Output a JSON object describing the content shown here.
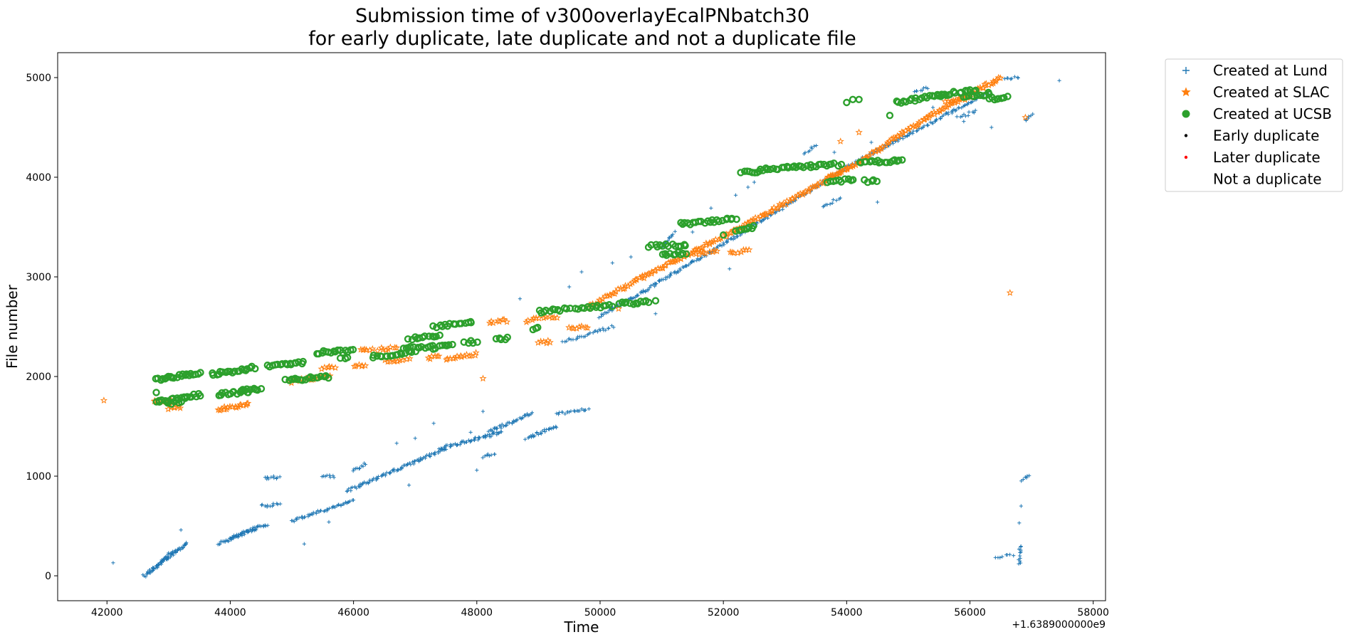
{
  "chart_data": {
    "type": "scatter",
    "title": "Submission time of v300overlayEcalPNbatch30\nfor early duplicate, late duplicate and not a duplicate file",
    "xlabel": "Time",
    "ylabel": "File number",
    "x_offset_label": "+1.6389000000e9",
    "xlim": [
      41200,
      58200
    ],
    "ylim": [
      -250,
      5250
    ],
    "xticks": [
      42000,
      44000,
      46000,
      48000,
      50000,
      52000,
      54000,
      56000,
      58000
    ],
    "yticks": [
      0,
      1000,
      2000,
      3000,
      4000,
      5000
    ],
    "grid": false,
    "legend_position": "outside-top-right",
    "legend": [
      {
        "label": "Created at Lund",
        "marker": "plus",
        "color": "#1f77b4"
      },
      {
        "label": "Created at SLAC",
        "marker": "star",
        "color": "#ff7f0e"
      },
      {
        "label": "Created at UCSB",
        "marker": "circle",
        "color": "#2ca02c"
      },
      {
        "label": "Early duplicate",
        "marker": "dot",
        "color": "#000000"
      },
      {
        "label": "Later duplicate",
        "marker": "dot",
        "color": "#ff0000"
      },
      {
        "label": "Not a duplicate",
        "marker": "none",
        "color": "#ffffff"
      }
    ],
    "series": [
      {
        "name": "Created at Lund",
        "marker": "plus",
        "color": "#1f77b4",
        "segments": [
          {
            "x0": 42600,
            "y0": 0,
            "x1": 43300,
            "y1": 330,
            "n": 60
          },
          {
            "x0": 42700,
            "y0": 50,
            "x1": 43100,
            "y1": 260,
            "n": 25
          },
          {
            "x0": 43800,
            "y0": 320,
            "x1": 44600,
            "y1": 520,
            "n": 50
          },
          {
            "x0": 44000,
            "y0": 380,
            "x1": 44400,
            "y1": 480,
            "n": 20
          },
          {
            "x0": 44500,
            "y0": 700,
            "x1": 44800,
            "y1": 720,
            "n": 12
          },
          {
            "x0": 44550,
            "y0": 980,
            "x1": 44800,
            "y1": 990,
            "n": 10
          },
          {
            "x0": 45000,
            "y0": 550,
            "x1": 46000,
            "y1": 760,
            "n": 50
          },
          {
            "x0": 45500,
            "y0": 1000,
            "x1": 45700,
            "y1": 1000,
            "n": 8
          },
          {
            "x0": 45900,
            "y0": 850,
            "x1": 47500,
            "y1": 1280,
            "n": 90
          },
          {
            "x0": 46000,
            "y0": 1050,
            "x1": 46200,
            "y1": 1130,
            "n": 10
          },
          {
            "x0": 47400,
            "y0": 1280,
            "x1": 48400,
            "y1": 1440,
            "n": 55
          },
          {
            "x0": 48100,
            "y0": 1200,
            "x1": 48300,
            "y1": 1220,
            "n": 8
          },
          {
            "x0": 48200,
            "y0": 1450,
            "x1": 48900,
            "y1": 1630,
            "n": 40
          },
          {
            "x0": 48800,
            "y0": 1380,
            "x1": 49300,
            "y1": 1500,
            "n": 25
          },
          {
            "x0": 49300,
            "y0": 1620,
            "x1": 49800,
            "y1": 1680,
            "n": 20
          },
          {
            "x0": 49400,
            "y0": 2350,
            "x1": 50200,
            "y1": 2500,
            "n": 30
          },
          {
            "x0": 50000,
            "y0": 2600,
            "x1": 52200,
            "y1": 3400,
            "n": 110
          },
          {
            "x0": 51000,
            "y0": 3300,
            "x1": 51200,
            "y1": 3450,
            "n": 12
          },
          {
            "x0": 52200,
            "y0": 3400,
            "x1": 54000,
            "y1": 4100,
            "n": 90
          },
          {
            "x0": 53300,
            "y0": 4230,
            "x1": 53500,
            "y1": 4330,
            "n": 8
          },
          {
            "x0": 53600,
            "y0": 3700,
            "x1": 53900,
            "y1": 3790,
            "n": 10
          },
          {
            "x0": 54000,
            "y0": 4100,
            "x1": 56300,
            "y1": 4850,
            "n": 110
          },
          {
            "x0": 55100,
            "y0": 4850,
            "x1": 55300,
            "y1": 4900,
            "n": 8
          },
          {
            "x0": 55800,
            "y0": 4600,
            "x1": 56100,
            "y1": 4660,
            "n": 10
          },
          {
            "x0": 56400,
            "y0": 190,
            "x1": 56700,
            "y1": 210,
            "n": 8
          },
          {
            "x0": 56800,
            "y0": 120,
            "x1": 56820,
            "y1": 300,
            "n": 12
          },
          {
            "x0": 56850,
            "y0": 960,
            "x1": 56950,
            "y1": 1000,
            "n": 6
          },
          {
            "x0": 56900,
            "y0": 4560,
            "x1": 57000,
            "y1": 4620,
            "n": 6
          },
          {
            "x0": 56550,
            "y0": 4990,
            "x1": 56800,
            "y1": 5000,
            "n": 8
          }
        ],
        "points": [
          [
            42100,
            130
          ],
          [
            43200,
            460
          ],
          [
            44600,
            990
          ],
          [
            45200,
            320
          ],
          [
            45600,
            540
          ],
          [
            46700,
            1330
          ],
          [
            46900,
            910
          ],
          [
            47000,
            1380
          ],
          [
            47300,
            1530
          ],
          [
            47900,
            1440
          ],
          [
            48000,
            1060
          ],
          [
            48100,
            1650
          ],
          [
            48700,
            2780
          ],
          [
            49500,
            2900
          ],
          [
            49700,
            3050
          ],
          [
            50200,
            3140
          ],
          [
            50500,
            3200
          ],
          [
            50900,
            2630
          ],
          [
            51500,
            3450
          ],
          [
            51800,
            3690
          ],
          [
            52100,
            3080
          ],
          [
            52200,
            3820
          ],
          [
            52400,
            3900
          ],
          [
            52500,
            3950
          ],
          [
            53800,
            4250
          ],
          [
            54400,
            4350
          ],
          [
            54500,
            3750
          ],
          [
            55400,
            4700
          ],
          [
            55900,
            4560
          ],
          [
            56350,
            4500
          ],
          [
            56800,
            530
          ],
          [
            56830,
            700
          ],
          [
            57450,
            4970
          ]
        ]
      },
      {
        "name": "Created at SLAC",
        "marker": "star",
        "color": "#ff7f0e",
        "segments": [
          {
            "x0": 42750,
            "y0": 1740,
            "x1": 43100,
            "y1": 1760,
            "n": 10
          },
          {
            "x0": 43000,
            "y0": 1680,
            "x1": 43200,
            "y1": 1690,
            "n": 6
          },
          {
            "x0": 43800,
            "y0": 1670,
            "x1": 44300,
            "y1": 1720,
            "n": 18
          },
          {
            "x0": 45000,
            "y0": 1950,
            "x1": 45600,
            "y1": 2000,
            "n": 18
          },
          {
            "x0": 45500,
            "y0": 2090,
            "x1": 45700,
            "y1": 2100,
            "n": 6
          },
          {
            "x0": 46000,
            "y0": 2100,
            "x1": 46200,
            "y1": 2120,
            "n": 6
          },
          {
            "x0": 46100,
            "y0": 2260,
            "x1": 46300,
            "y1": 2270,
            "n": 6
          },
          {
            "x0": 46400,
            "y0": 2270,
            "x1": 46700,
            "y1": 2290,
            "n": 8
          },
          {
            "x0": 46500,
            "y0": 2150,
            "x1": 46900,
            "y1": 2180,
            "n": 10
          },
          {
            "x0": 47200,
            "y0": 2180,
            "x1": 47400,
            "y1": 2200,
            "n": 6
          },
          {
            "x0": 47500,
            "y0": 2170,
            "x1": 48000,
            "y1": 2230,
            "n": 14
          },
          {
            "x0": 48200,
            "y0": 2540,
            "x1": 48500,
            "y1": 2560,
            "n": 8
          },
          {
            "x0": 48800,
            "y0": 2560,
            "x1": 49300,
            "y1": 2600,
            "n": 12
          },
          {
            "x0": 49000,
            "y0": 2340,
            "x1": 49200,
            "y1": 2350,
            "n": 6
          },
          {
            "x0": 49500,
            "y0": 2480,
            "x1": 49800,
            "y1": 2500,
            "n": 8
          },
          {
            "x0": 49800,
            "y0": 2700,
            "x1": 50700,
            "y1": 3000,
            "n": 30
          },
          {
            "x0": 50700,
            "y0": 3000,
            "x1": 52300,
            "y1": 3500,
            "n": 55
          },
          {
            "x0": 51500,
            "y0": 3230,
            "x1": 51900,
            "y1": 3260,
            "n": 10
          },
          {
            "x0": 52100,
            "y0": 3250,
            "x1": 52400,
            "y1": 3260,
            "n": 8
          },
          {
            "x0": 52300,
            "y0": 3500,
            "x1": 54200,
            "y1": 4150,
            "n": 65
          },
          {
            "x0": 53700,
            "y0": 3990,
            "x1": 54000,
            "y1": 4100,
            "n": 8
          },
          {
            "x0": 54200,
            "y0": 4150,
            "x1": 55300,
            "y1": 4600,
            "n": 40
          },
          {
            "x0": 55300,
            "y0": 4600,
            "x1": 56500,
            "y1": 5000,
            "n": 45
          },
          {
            "x0": 55600,
            "y0": 4750,
            "x1": 56000,
            "y1": 4800,
            "n": 10
          }
        ],
        "points": [
          [
            41950,
            1760
          ],
          [
            48100,
            1980
          ],
          [
            50300,
            2680
          ],
          [
            51200,
            3150
          ],
          [
            53900,
            4360
          ],
          [
            54200,
            4450
          ],
          [
            56650,
            2840
          ],
          [
            56900,
            4600
          ]
        ]
      },
      {
        "name": "Created at UCSB",
        "marker": "circle",
        "color": "#2ca02c",
        "segments": [
          {
            "x0": 42800,
            "y0": 1970,
            "x1": 43500,
            "y1": 2040,
            "n": 22
          },
          {
            "x0": 42800,
            "y0": 1740,
            "x1": 43500,
            "y1": 1820,
            "n": 22
          },
          {
            "x0": 43000,
            "y0": 1730,
            "x1": 43200,
            "y1": 1740,
            "n": 5
          },
          {
            "x0": 43700,
            "y0": 2020,
            "x1": 44400,
            "y1": 2090,
            "n": 20
          },
          {
            "x0": 43800,
            "y0": 1820,
            "x1": 44300,
            "y1": 1850,
            "n": 14
          },
          {
            "x0": 44200,
            "y0": 1860,
            "x1": 44500,
            "y1": 1870,
            "n": 8
          },
          {
            "x0": 44600,
            "y0": 2100,
            "x1": 45200,
            "y1": 2140,
            "n": 16
          },
          {
            "x0": 44900,
            "y0": 1960,
            "x1": 45600,
            "y1": 2000,
            "n": 18
          },
          {
            "x0": 45400,
            "y0": 2240,
            "x1": 46000,
            "y1": 2260,
            "n": 16
          },
          {
            "x0": 45800,
            "y0": 2180,
            "x1": 45900,
            "y1": 2190,
            "n": 3
          },
          {
            "x0": 46300,
            "y0": 2200,
            "x1": 47000,
            "y1": 2250,
            "n": 18
          },
          {
            "x0": 46800,
            "y0": 2280,
            "x1": 47300,
            "y1": 2300,
            "n": 12
          },
          {
            "x0": 46900,
            "y0": 2380,
            "x1": 47400,
            "y1": 2400,
            "n": 12
          },
          {
            "x0": 47300,
            "y0": 2280,
            "x1": 47600,
            "y1": 2330,
            "n": 8
          },
          {
            "x0": 47300,
            "y0": 2500,
            "x1": 47900,
            "y1": 2540,
            "n": 14
          },
          {
            "x0": 47800,
            "y0": 2340,
            "x1": 48000,
            "y1": 2350,
            "n": 5
          },
          {
            "x0": 48300,
            "y0": 2370,
            "x1": 48500,
            "y1": 2380,
            "n": 5
          },
          {
            "x0": 48900,
            "y0": 2470,
            "x1": 49000,
            "y1": 2480,
            "n": 3
          },
          {
            "x0": 49000,
            "y0": 2650,
            "x1": 49500,
            "y1": 2680,
            "n": 12
          },
          {
            "x0": 49600,
            "y0": 2680,
            "x1": 50200,
            "y1": 2710,
            "n": 14
          },
          {
            "x0": 50300,
            "y0": 2730,
            "x1": 50800,
            "y1": 2750,
            "n": 12
          },
          {
            "x0": 50800,
            "y0": 3310,
            "x1": 51400,
            "y1": 3320,
            "n": 14
          },
          {
            "x0": 51000,
            "y0": 3220,
            "x1": 51400,
            "y1": 3240,
            "n": 10
          },
          {
            "x0": 51300,
            "y0": 3530,
            "x1": 52200,
            "y1": 3580,
            "n": 22
          },
          {
            "x0": 52200,
            "y0": 3450,
            "x1": 52500,
            "y1": 3500,
            "n": 8
          },
          {
            "x0": 52300,
            "y0": 4050,
            "x1": 52600,
            "y1": 4060,
            "n": 8
          },
          {
            "x0": 52600,
            "y0": 4080,
            "x1": 53400,
            "y1": 4110,
            "n": 20
          },
          {
            "x0": 53400,
            "y0": 4110,
            "x1": 53900,
            "y1": 4130,
            "n": 12
          },
          {
            "x0": 53700,
            "y0": 3950,
            "x1": 54100,
            "y1": 3980,
            "n": 10
          },
          {
            "x0": 54300,
            "y0": 3960,
            "x1": 54500,
            "y1": 3970,
            "n": 5
          },
          {
            "x0": 54200,
            "y0": 4150,
            "x1": 54900,
            "y1": 4170,
            "n": 18
          },
          {
            "x0": 54800,
            "y0": 4750,
            "x1": 55600,
            "y1": 4830,
            "n": 20
          },
          {
            "x0": 55500,
            "y0": 4830,
            "x1": 56100,
            "y1": 4870,
            "n": 14
          },
          {
            "x0": 55900,
            "y0": 4800,
            "x1": 56300,
            "y1": 4830,
            "n": 10
          },
          {
            "x0": 56300,
            "y0": 4790,
            "x1": 56600,
            "y1": 4800,
            "n": 8
          }
        ],
        "points": [
          [
            42800,
            1840
          ],
          [
            47900,
            2550
          ],
          [
            50900,
            2760
          ],
          [
            52000,
            3420
          ],
          [
            54000,
            4750
          ],
          [
            54100,
            4780
          ],
          [
            54200,
            4780
          ],
          [
            54700,
            4620
          ],
          [
            56300,
            4850
          ]
        ]
      },
      {
        "name": "Early duplicate",
        "marker": "dot",
        "color": "#000000",
        "segments": [],
        "points": []
      },
      {
        "name": "Later duplicate",
        "marker": "dot",
        "color": "#ff0000",
        "segments": [],
        "points": []
      }
    ]
  }
}
